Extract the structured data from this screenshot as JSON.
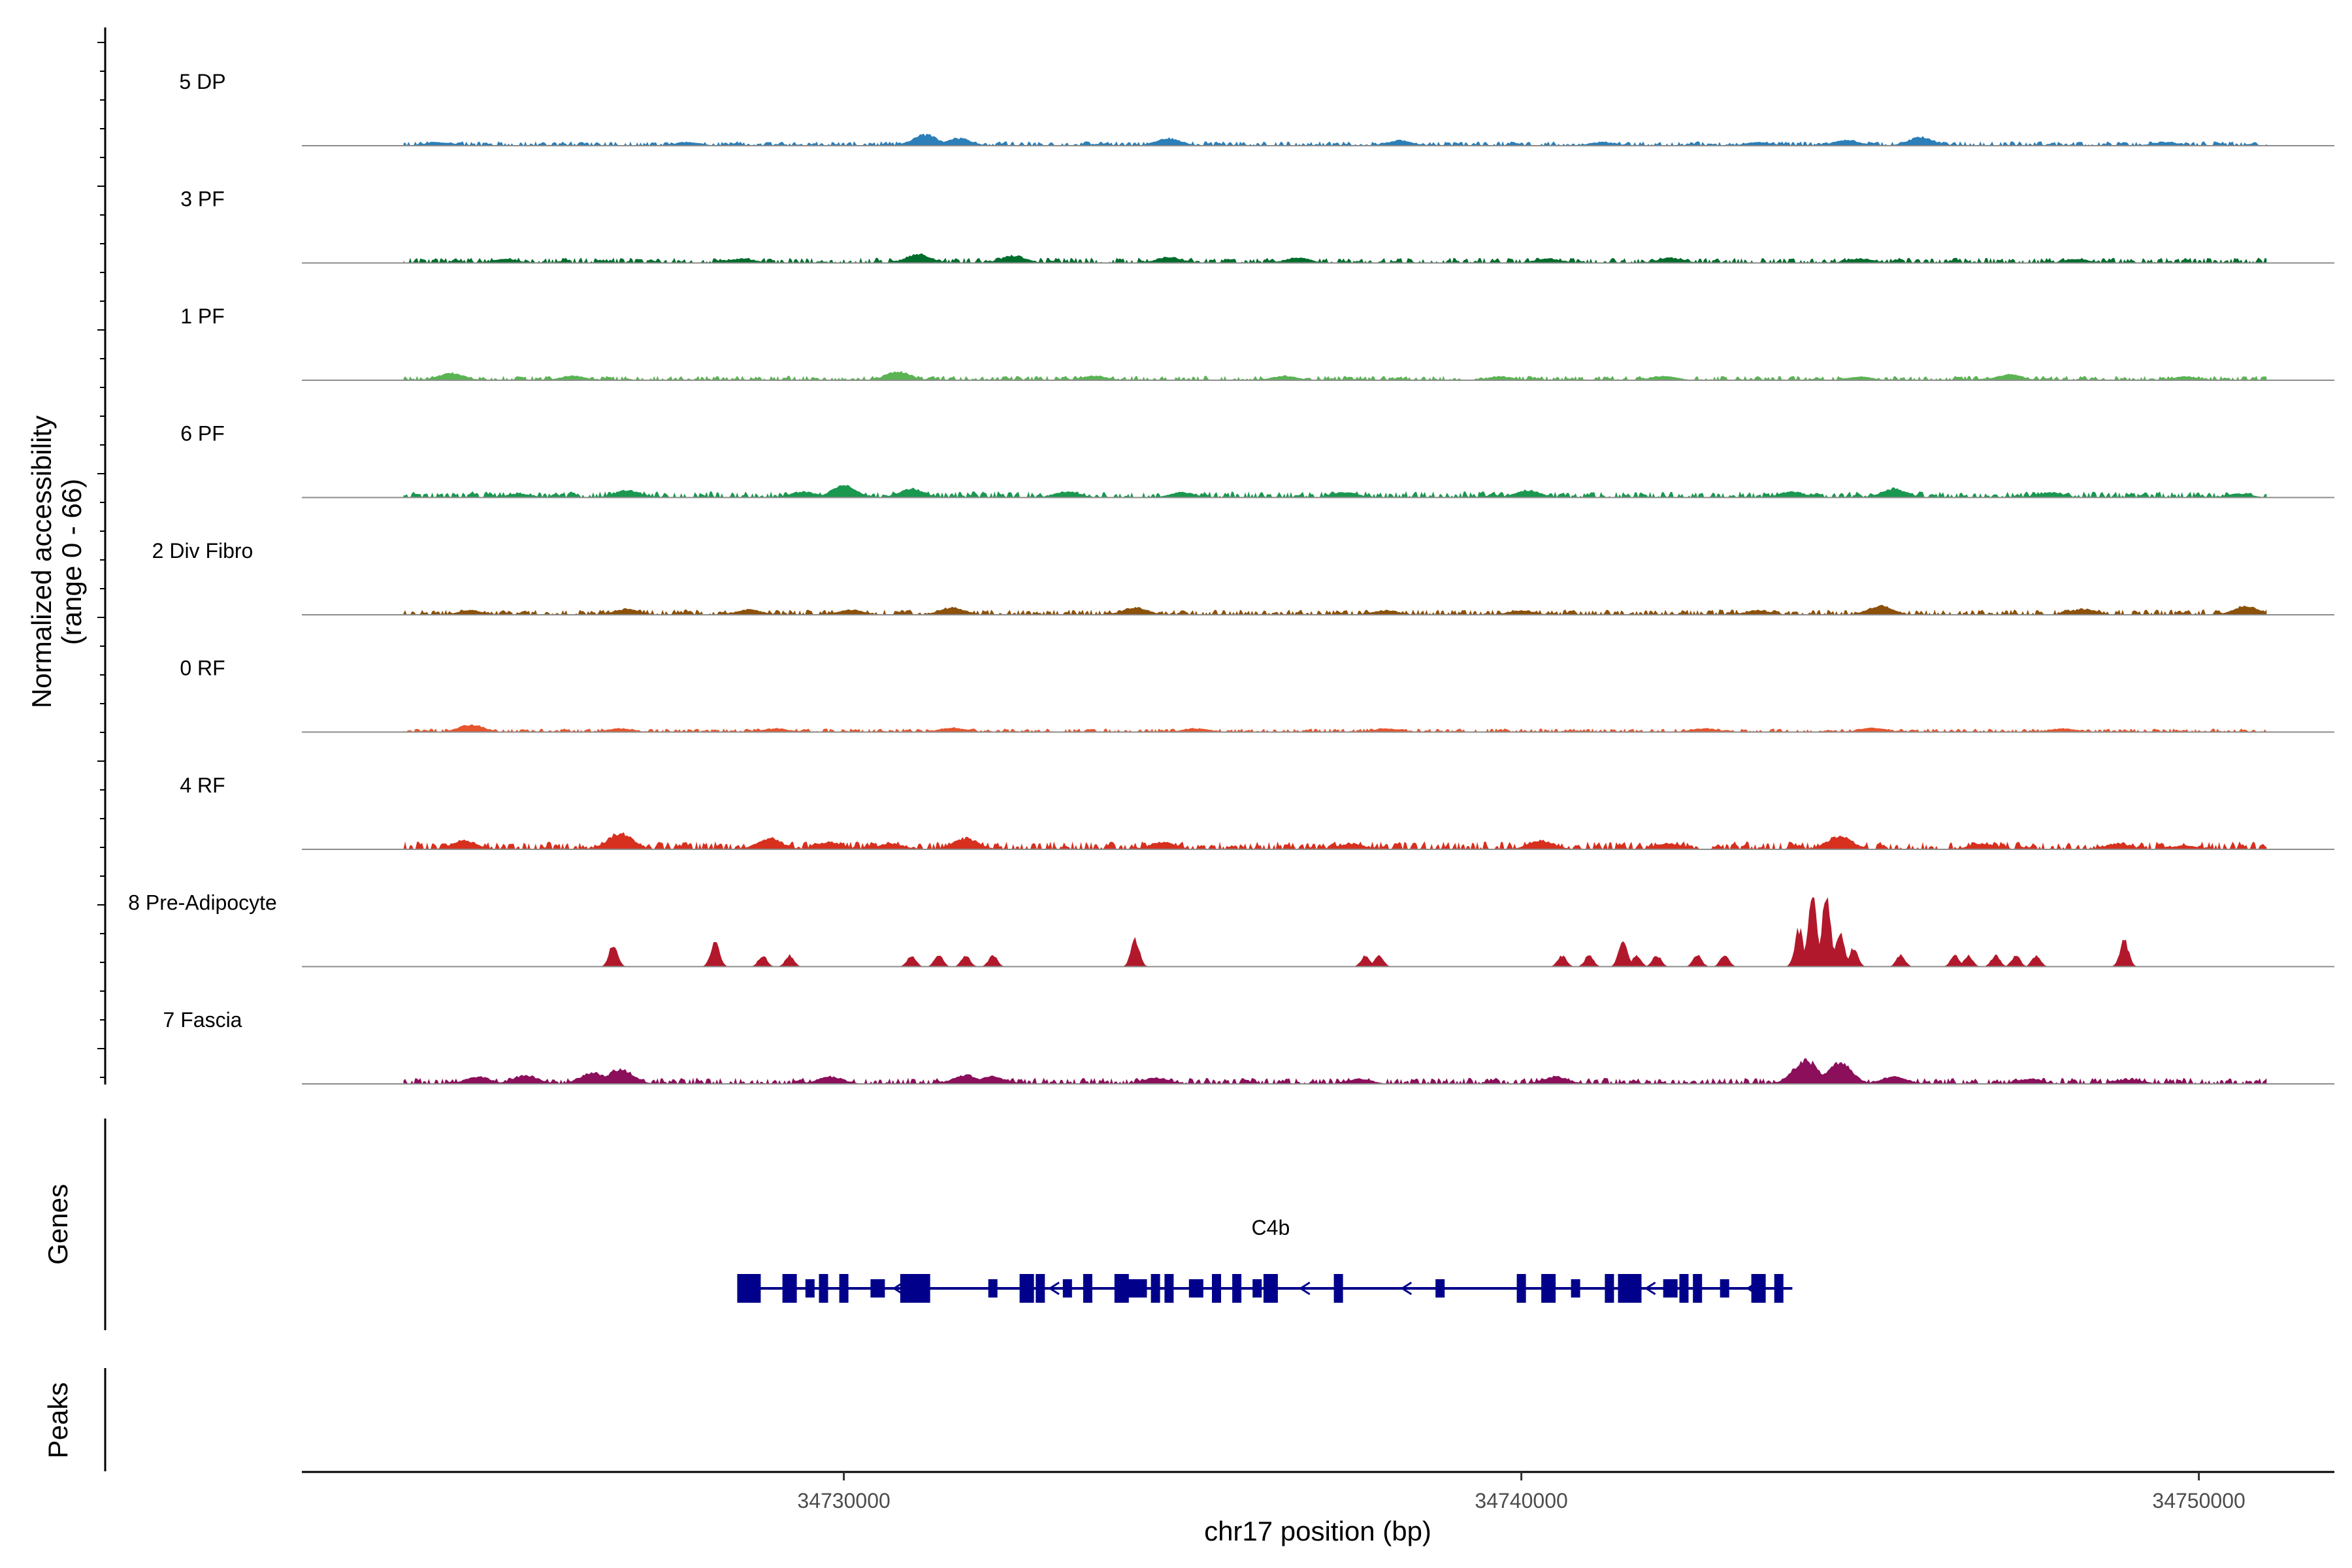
{
  "chart_data": {
    "type": "area",
    "region": {
      "chromosome": "chr17",
      "start": 34722000,
      "end": 34752000
    },
    "yaxis": {
      "title_line1": "Normalized accessibility",
      "title_line2": "(range 0 - 66)",
      "range": [
        0,
        66
      ]
    },
    "xaxis": {
      "title": "chr17 position (bp)",
      "ticks": [
        {
          "value": 34730000,
          "label": "34730000"
        },
        {
          "value": 34740000,
          "label": "34740000"
        },
        {
          "value": 34750000,
          "label": "34750000"
        }
      ]
    },
    "tracks": [
      {
        "label": "5 DP",
        "color": "#2c7fb8",
        "level": 0.05,
        "peaks": [
          [
            34724000,
            0.05
          ],
          [
            34727700,
            0.05
          ],
          [
            34731200,
            0.15
          ],
          [
            34731700,
            0.1
          ],
          [
            34734800,
            0.1
          ],
          [
            34738200,
            0.07
          ],
          [
            34741200,
            0.05
          ],
          [
            34743500,
            0.05
          ],
          [
            34744800,
            0.08
          ],
          [
            34745900,
            0.12
          ],
          [
            34749500,
            0.05
          ]
        ]
      },
      {
        "label": "3 PF",
        "color": "#006d2c",
        "level": 0.06,
        "peaks": [
          [
            34725000,
            0.05
          ],
          [
            34728500,
            0.06
          ],
          [
            34731100,
            0.12
          ],
          [
            34732500,
            0.1
          ],
          [
            34734800,
            0.08
          ],
          [
            34736700,
            0.07
          ],
          [
            34740400,
            0.06
          ],
          [
            34742200,
            0.07
          ],
          [
            34745000,
            0.06
          ],
          [
            34748200,
            0.05
          ]
        ]
      },
      {
        "label": "1 PF",
        "color": "#5ab453",
        "level": 0.05,
        "peaks": [
          [
            34724200,
            0.1
          ],
          [
            34726000,
            0.06
          ],
          [
            34730800,
            0.12
          ],
          [
            34733700,
            0.06
          ],
          [
            34736500,
            0.06
          ],
          [
            34739700,
            0.05
          ],
          [
            34742100,
            0.06
          ],
          [
            34745000,
            0.05
          ],
          [
            34747200,
            0.08
          ],
          [
            34749800,
            0.05
          ]
        ]
      },
      {
        "label": "6 PF",
        "color": "#1a9850",
        "level": 0.07,
        "peaks": [
          [
            34725200,
            0.05
          ],
          [
            34726800,
            0.1
          ],
          [
            34729400,
            0.08
          ],
          [
            34730000,
            0.16
          ],
          [
            34731000,
            0.12
          ],
          [
            34733300,
            0.08
          ],
          [
            34735000,
            0.07
          ],
          [
            34737400,
            0.07
          ],
          [
            34740100,
            0.1
          ],
          [
            34744000,
            0.08
          ],
          [
            34745500,
            0.12
          ],
          [
            34747800,
            0.07
          ],
          [
            34750600,
            0.05
          ]
        ]
      },
      {
        "label": "2 Div Fibro",
        "color": "#8c510a",
        "level": 0.06,
        "peaks": [
          [
            34724500,
            0.06
          ],
          [
            34726800,
            0.08
          ],
          [
            34728600,
            0.07
          ],
          [
            34730100,
            0.07
          ],
          [
            34731600,
            0.1
          ],
          [
            34734300,
            0.1
          ],
          [
            34738000,
            0.06
          ],
          [
            34740000,
            0.06
          ],
          [
            34743500,
            0.06
          ],
          [
            34745300,
            0.12
          ],
          [
            34748300,
            0.08
          ],
          [
            34750700,
            0.12
          ]
        ]
      },
      {
        "label": "0 RF",
        "color": "#e6552d",
        "level": 0.04,
        "peaks": [
          [
            34724500,
            0.1
          ],
          [
            34726700,
            0.05
          ],
          [
            34729000,
            0.05
          ],
          [
            34731600,
            0.06
          ],
          [
            34735200,
            0.05
          ],
          [
            34738000,
            0.05
          ],
          [
            34742700,
            0.05
          ],
          [
            34745200,
            0.06
          ],
          [
            34748000,
            0.05
          ]
        ]
      },
      {
        "label": "4 RF",
        "color": "#d7301f",
        "level": 0.09,
        "peaks": [
          [
            34724400,
            0.12
          ],
          [
            34726700,
            0.22
          ],
          [
            34728900,
            0.15
          ],
          [
            34729800,
            0.1
          ],
          [
            34730700,
            0.08
          ],
          [
            34731800,
            0.15
          ],
          [
            34734700,
            0.1
          ],
          [
            34737500,
            0.08
          ],
          [
            34740300,
            0.12
          ],
          [
            34742200,
            0.08
          ],
          [
            34744700,
            0.18
          ],
          [
            34746800,
            0.08
          ],
          [
            34748800,
            0.08
          ],
          [
            34749800,
            0.05
          ]
        ]
      },
      {
        "label": "8 Pre-Adipocyte",
        "color": "#b2182b",
        "level": 0.0,
        "peaks": [
          [
            34726600,
            0.3
          ],
          [
            34728100,
            0.35
          ],
          [
            34728800,
            0.15
          ],
          [
            34729200,
            0.15
          ],
          [
            34731000,
            0.15
          ],
          [
            34731400,
            0.15
          ],
          [
            34731800,
            0.15
          ],
          [
            34732200,
            0.15
          ],
          [
            34734300,
            0.35
          ],
          [
            34737700,
            0.15
          ],
          [
            34737900,
            0.15
          ],
          [
            34740600,
            0.15
          ],
          [
            34741000,
            0.15
          ],
          [
            34741500,
            0.35
          ],
          [
            34741700,
            0.15
          ],
          [
            34742000,
            0.15
          ],
          [
            34742600,
            0.15
          ],
          [
            34743000,
            0.15
          ],
          [
            34744100,
            0.5
          ],
          [
            34744300,
            0.95
          ],
          [
            34744500,
            1.0
          ],
          [
            34744700,
            0.45
          ],
          [
            34744900,
            0.25
          ],
          [
            34745600,
            0.15
          ],
          [
            34746400,
            0.15
          ],
          [
            34746600,
            0.15
          ],
          [
            34747000,
            0.15
          ],
          [
            34747300,
            0.15
          ],
          [
            34747600,
            0.15
          ],
          [
            34748900,
            0.35
          ]
        ]
      },
      {
        "label": "7 Fascia",
        "color": "#8b0f5b",
        "level": 0.07,
        "peaks": [
          [
            34724600,
            0.1
          ],
          [
            34725300,
            0.12
          ],
          [
            34726300,
            0.15
          ],
          [
            34726700,
            0.2
          ],
          [
            34729800,
            0.1
          ],
          [
            34731800,
            0.12
          ],
          [
            34732200,
            0.1
          ],
          [
            34734600,
            0.08
          ],
          [
            34737600,
            0.07
          ],
          [
            34740500,
            0.1
          ],
          [
            34744200,
            0.32
          ],
          [
            34744700,
            0.28
          ],
          [
            34745500,
            0.1
          ],
          [
            34747500,
            0.07
          ],
          [
            34749000,
            0.06
          ]
        ]
      }
    ],
    "genes": [
      {
        "name": "C4b",
        "start": 34728600,
        "end": 34744000,
        "strand": "-",
        "exons": [
          34728600,
          34729200,
          34729500,
          34729700,
          34730000,
          34730500,
          34730900,
          34731100,
          34732200,
          34732700,
          34732900,
          34733300,
          34733600,
          34734100,
          34734300,
          34734600,
          34734800,
          34735200,
          34735500,
          34735800,
          34736100,
          34736300,
          34737300,
          34738800,
          34740000,
          34740400,
          34740800,
          34741300,
          34741600,
          34742200,
          34742400,
          34742600,
          34743000,
          34743500,
          34743800
        ]
      }
    ],
    "panels": [
      {
        "label": "Genes"
      },
      {
        "label": "Peaks"
      }
    ]
  }
}
